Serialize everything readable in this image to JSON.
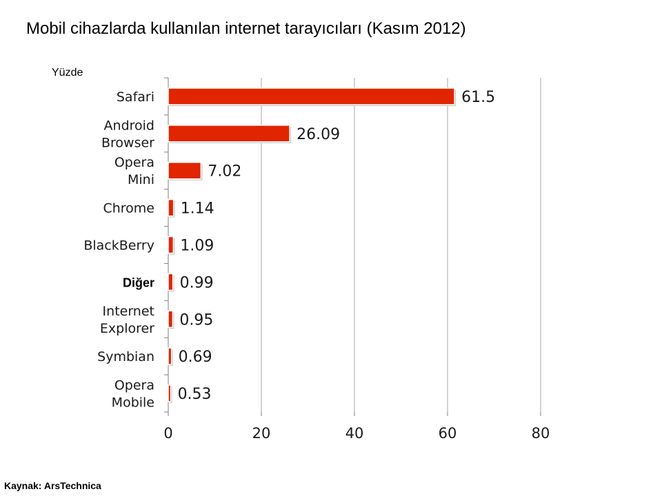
{
  "title": "Mobil cihazlarda kullanılan internet tarayıcıları (Kasım 2012)",
  "unit_label": "Yüzde",
  "source": "Kaynak: ArsTechnica",
  "colors": {
    "bar": "#e02500",
    "grid": "#a6a6a6",
    "axis": "#7f7f7f"
  },
  "chart_data": {
    "type": "bar",
    "orientation": "horizontal",
    "categories": [
      [
        "Safari"
      ],
      [
        "Android",
        "Browser"
      ],
      [
        "Opera",
        "Mini"
      ],
      [
        "Chrome"
      ],
      [
        "BlackBerry"
      ],
      [
        "Diğer"
      ],
      [
        "Internet",
        "Explorer"
      ],
      [
        "Symbian"
      ],
      [
        "Opera",
        "Mobile"
      ]
    ],
    "bold_category_index": 5,
    "values": [
      61.5,
      26.09,
      7.02,
      1.14,
      1.09,
      0.99,
      0.95,
      0.69,
      0.53
    ],
    "value_labels": [
      "61.5",
      "26.09",
      "7.02",
      "1.14",
      "1.09",
      "0.99",
      "0.95",
      "0.69",
      "0.53"
    ],
    "xlim": [
      0,
      80
    ],
    "xticks": [
      0,
      20,
      40,
      60,
      80
    ],
    "xtick_labels": [
      "0",
      "20",
      "40",
      "60",
      "80"
    ],
    "grid": true,
    "legend": "none"
  }
}
